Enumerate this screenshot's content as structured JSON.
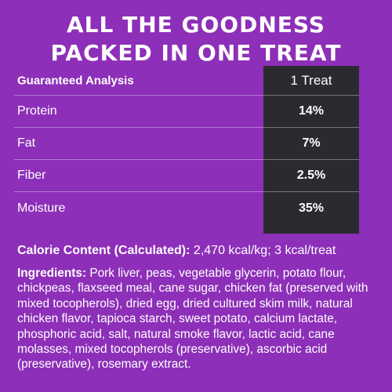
{
  "headline": {
    "line1": "ALL THE GOODNESS",
    "line2": "PACKED IN ONE TREAT"
  },
  "analysis_table": {
    "header_label": "Guaranteed Analysis",
    "header_value": "1 Treat",
    "rows": [
      {
        "label": "Protein",
        "value": "14%"
      },
      {
        "label": "Fat",
        "value": "7%"
      },
      {
        "label": "Fiber",
        "value": "2.5%"
      },
      {
        "label": "Moisture",
        "value": "35%"
      }
    ]
  },
  "calorie": {
    "label": "Calorie Content (Calculated):",
    "value": "2,470 kcal/kg; 3 kcal/treat"
  },
  "ingredients": {
    "label": "Ingredients:",
    "text": "Pork liver, peas, vegetable glycerin, potato flour, chickpeas, flaxseed meal, cane sugar, chicken fat (preserved with mixed tocopherols), dried egg, dried cultured skim milk, natural chicken flavor, tapioca starch, sweet potato, calcium lactate, phosphoric acid, salt, natural smoke flavor, lactic acid, cane molasses, mixed tocopherols (preservative), ascorbic acid (preservative), rosemary extract."
  },
  "colors": {
    "background": "#8d2fb8",
    "value_column": "#2b2a30",
    "text": "#ffffff"
  }
}
